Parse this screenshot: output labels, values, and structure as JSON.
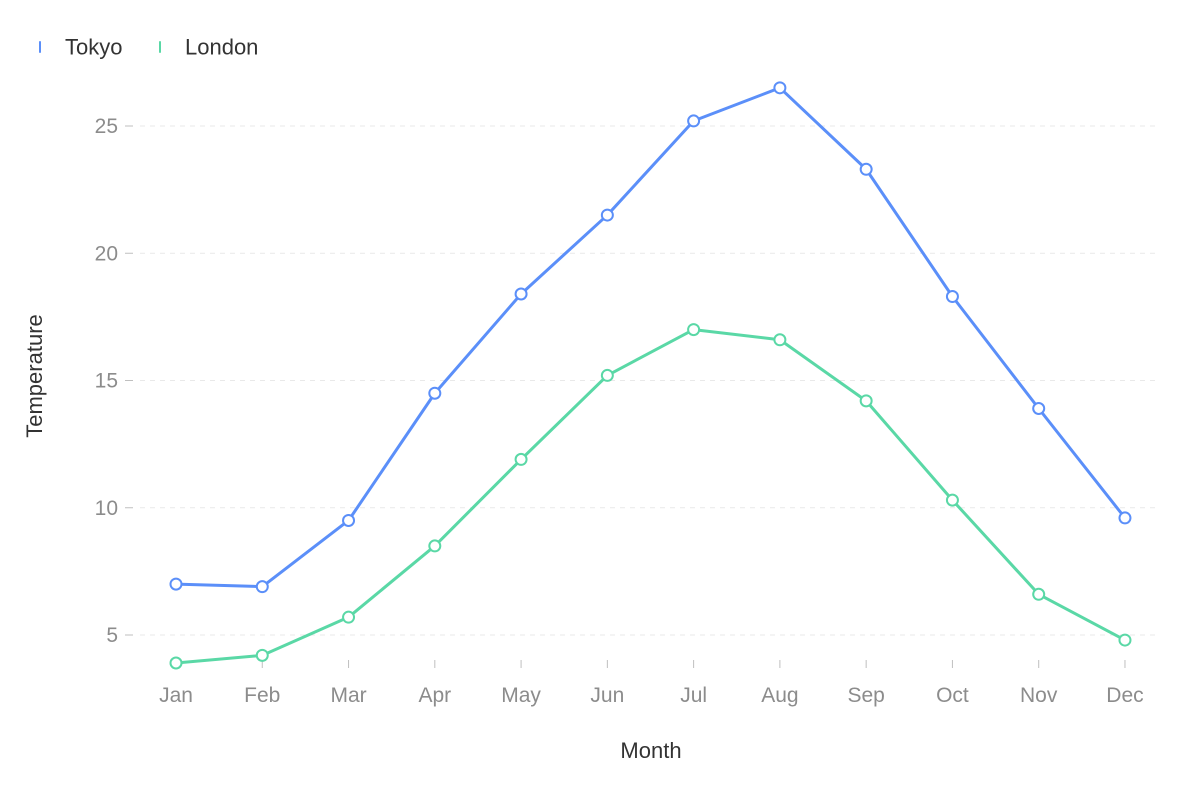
{
  "chart_data": {
    "type": "line",
    "categories": [
      "Jan",
      "Feb",
      "Mar",
      "Apr",
      "May",
      "Jun",
      "Jul",
      "Aug",
      "Sep",
      "Oct",
      "Nov",
      "Dec"
    ],
    "series": [
      {
        "name": "Tokyo",
        "color": "#5b8ff9",
        "values": [
          7.0,
          6.9,
          9.5,
          14.5,
          18.4,
          21.5,
          25.2,
          26.5,
          23.3,
          18.3,
          13.9,
          9.6
        ]
      },
      {
        "name": "London",
        "color": "#5ad8a6",
        "values": [
          3.9,
          4.2,
          5.7,
          8.5,
          11.9,
          15.2,
          17.0,
          16.6,
          14.2,
          10.3,
          6.6,
          4.8
        ]
      }
    ],
    "xlabel": "Month",
    "ylabel": "Temperature",
    "ylim": [
      3.5,
      27
    ],
    "yticks": [
      5,
      10,
      15,
      20,
      25
    ],
    "grid": true,
    "legend": "top-left"
  },
  "colors": {
    "grid": "#e9e9e9",
    "axis_tick": "#bfbfbf",
    "tick_label": "#8c8c8c",
    "text": "#333333"
  }
}
